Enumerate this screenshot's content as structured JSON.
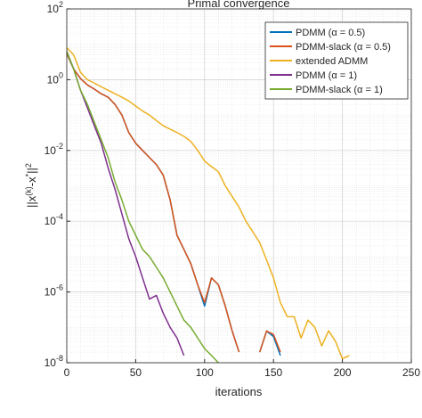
{
  "chart_data": {
    "type": "line",
    "title": "Primal convergence",
    "xlabel": "iterations",
    "ylabel": [
      {
        "text": "||x"
      },
      {
        "text": "(k)",
        "sup": true
      },
      {
        "text": "-x"
      },
      {
        "text": "*",
        "sup": true
      },
      {
        "text": "||"
      },
      {
        "text": "2",
        "sup": true
      }
    ],
    "xlim": [
      0,
      250
    ],
    "xticks": [
      0,
      50,
      100,
      150,
      200,
      250
    ],
    "ylim": [
      1e-08,
      100
    ],
    "yscale": "log",
    "yticks": [
      {
        "value": 1e-08,
        "label": "10^-8"
      },
      {
        "value": 1e-06,
        "label": "10^-6"
      },
      {
        "value": 0.0001,
        "label": "10^-4"
      },
      {
        "value": 0.01,
        "label": "10^-2"
      },
      {
        "value": 1,
        "label": "10^0"
      },
      {
        "value": 100,
        "label": "10^2"
      }
    ],
    "grid": true,
    "minor_grid": true,
    "legend": "top-right",
    "x": [
      0,
      5,
      10,
      15,
      20,
      25,
      30,
      35,
      40,
      45,
      50,
      55,
      60,
      65,
      70,
      75,
      80,
      85,
      90,
      95,
      100,
      105,
      110,
      115,
      120,
      125,
      130,
      135,
      140,
      145,
      150,
      155,
      160,
      165,
      170,
      175,
      180,
      185,
      190,
      195,
      200,
      205,
      210
    ],
    "series": [
      {
        "name": "PDMM (α = 0.5)",
        "color": "#0072bd",
        "values": [
          5.5,
          2,
          1.07,
          0.71,
          0.54,
          0.4,
          0.32,
          0.2,
          0.1,
          0.032,
          0.016,
          0.01,
          0.0063,
          0.004,
          0.002,
          0.0004,
          4e-05,
          1.6e-05,
          6.3e-06,
          1.6e-06,
          4e-07,
          2.5e-06,
          1.6e-06,
          4e-07,
          7.9e-08,
          2e-08,
          null,
          null,
          2e-08,
          7.9e-08,
          5.5e-08,
          1.6e-08,
          null,
          null,
          null,
          null,
          null,
          null,
          null,
          null,
          null,
          null,
          null
        ]
      },
      {
        "name": "PDMM-slack (α = 0.5)",
        "color": "#d95319",
        "values": [
          5.5,
          2,
          1.07,
          0.71,
          0.54,
          0.4,
          0.32,
          0.2,
          0.1,
          0.032,
          0.016,
          0.01,
          0.0063,
          0.004,
          0.002,
          0.0004,
          4e-05,
          1.6e-05,
          6.3e-06,
          1.6e-06,
          5e-07,
          2.5e-06,
          1.6e-06,
          4e-07,
          7.9e-08,
          2e-08,
          null,
          null,
          2e-08,
          7.9e-08,
          6.3e-08,
          2e-08,
          null,
          null,
          null,
          null,
          null,
          null,
          null,
          null,
          null,
          null,
          null
        ]
      },
      {
        "name": "extended ADMM",
        "color": "#edb120",
        "values": [
          8,
          5,
          1.6,
          1,
          0.8,
          0.63,
          0.5,
          0.4,
          0.32,
          0.25,
          0.18,
          0.13,
          0.1,
          0.07,
          0.05,
          0.04,
          0.032,
          0.025,
          0.018,
          0.01,
          0.005,
          0.0035,
          0.0025,
          0.001,
          0.0005,
          0.00025,
          0.0001,
          5e-05,
          2.5e-05,
          8e-06,
          2.5e-06,
          5e-07,
          2e-07,
          2e-07,
          5e-08,
          1.6e-07,
          1e-07,
          3e-08,
          8e-08,
          4e-08,
          1.3e-08,
          1.6e-08,
          null
        ]
      },
      {
        "name": "PDMM (α = 1)",
        "color": "#7e2f8e",
        "values": [
          6.3,
          2,
          0.5,
          0.16,
          0.05,
          0.016,
          0.0032,
          0.0008,
          0.00016,
          3.2e-05,
          1e-05,
          2.5e-06,
          6.3e-07,
          8e-07,
          2.5e-07,
          1e-07,
          5e-08,
          1.6e-08,
          null,
          null,
          null,
          null,
          null,
          null,
          null,
          null,
          null,
          null,
          null,
          null,
          null,
          null,
          null,
          null,
          null,
          null,
          null,
          null,
          null,
          null,
          null,
          null,
          null
        ]
      },
      {
        "name": "PDMM-slack (α = 1)",
        "color": "#77ac30",
        "values": [
          6.3,
          2,
          0.5,
          0.2,
          0.063,
          0.02,
          0.0063,
          0.0013,
          0.0004,
          0.0001,
          4e-05,
          1.6e-05,
          1e-05,
          5e-06,
          2.5e-06,
          1e-06,
          4e-07,
          1.6e-07,
          1e-07,
          5e-08,
          2.5e-08,
          1.6e-08,
          1e-08,
          null,
          null,
          null,
          null,
          null,
          null,
          null,
          null,
          null,
          null,
          null,
          null,
          null,
          null,
          null,
          null,
          null,
          null,
          null,
          null
        ]
      }
    ]
  }
}
